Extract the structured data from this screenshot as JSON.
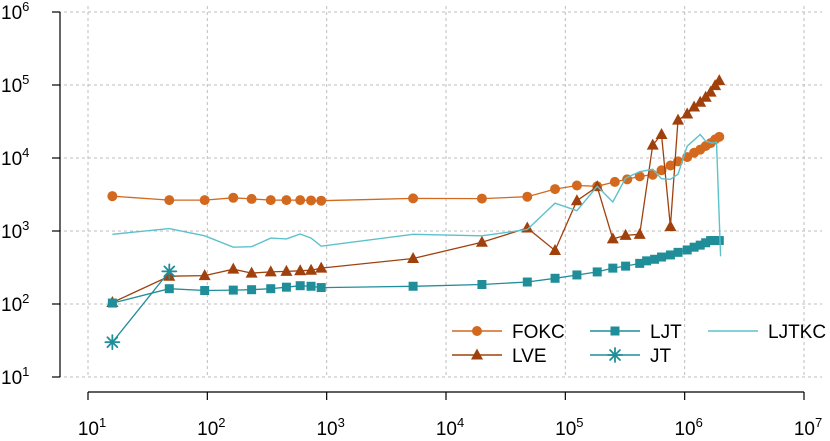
{
  "chart_data": {
    "type": "line",
    "title": "",
    "xlabel": "",
    "ylabel": "",
    "xscale": "log",
    "yscale": "log",
    "xlim": [
      10,
      10000000
    ],
    "ylim": [
      10,
      1000000
    ],
    "grid": true,
    "legend_position": "bottom-right",
    "x_ticks": [
      {
        "base": "10",
        "exp": "1",
        "value": 10
      },
      {
        "base": "10",
        "exp": "2",
        "value": 100
      },
      {
        "base": "10",
        "exp": "3",
        "value": 1000
      },
      {
        "base": "10",
        "exp": "4",
        "value": 10000
      },
      {
        "base": "10",
        "exp": "5",
        "value": 100000
      },
      {
        "base": "10",
        "exp": "6",
        "value": 1000000
      },
      {
        "base": "10",
        "exp": "7",
        "value": 10000000
      }
    ],
    "y_ticks": [
      {
        "base": "10",
        "exp": "1",
        "value": 10
      },
      {
        "base": "10",
        "exp": "2",
        "value": 100
      },
      {
        "base": "10",
        "exp": "3",
        "value": 1000
      },
      {
        "base": "10",
        "exp": "4",
        "value": 10000
      },
      {
        "base": "10",
        "exp": "5",
        "value": 100000
      },
      {
        "base": "10",
        "exp": "6",
        "value": 1000000
      }
    ],
    "series": [
      {
        "name": "FOKC",
        "color": "#d2691e",
        "marker": "circle",
        "line": true,
        "points": [
          [
            16,
            3000
          ],
          [
            48,
            2650
          ],
          [
            95,
            2650
          ],
          [
            165,
            2850
          ],
          [
            235,
            2750
          ],
          [
            340,
            2650
          ],
          [
            460,
            2650
          ],
          [
            600,
            2650
          ],
          [
            740,
            2620
          ],
          [
            900,
            2600
          ],
          [
            5300,
            2800
          ],
          [
            20000,
            2780
          ],
          [
            48000,
            2950
          ],
          [
            82000,
            3750
          ],
          [
            125000,
            4200
          ],
          [
            185000,
            4100
          ],
          [
            260000,
            4700
          ],
          [
            330000,
            5100
          ],
          [
            420000,
            5600
          ],
          [
            540000,
            5900
          ],
          [
            640000,
            6800
          ],
          [
            760000,
            7900
          ],
          [
            880000,
            9000
          ],
          [
            1050000,
            10300
          ],
          [
            1200000,
            11800
          ],
          [
            1350000,
            13000
          ],
          [
            1500000,
            14600
          ],
          [
            1650000,
            16000
          ],
          [
            1800000,
            18000
          ],
          [
            1950000,
            19500
          ]
        ]
      },
      {
        "name": "LVE",
        "color": "#a0410d",
        "marker": "triangle",
        "line": true,
        "points": [
          [
            16,
            105
          ],
          [
            48,
            240
          ],
          [
            95,
            245
          ],
          [
            165,
            300
          ],
          [
            235,
            265
          ],
          [
            340,
            275
          ],
          [
            460,
            280
          ],
          [
            600,
            285
          ],
          [
            740,
            290
          ],
          [
            900,
            310
          ],
          [
            5300,
            420
          ],
          [
            20000,
            700
          ],
          [
            48000,
            1100
          ],
          [
            82000,
            540
          ],
          [
            125000,
            2600
          ],
          [
            185000,
            4050
          ],
          [
            250000,
            780
          ],
          [
            320000,
            870
          ],
          [
            420000,
            900
          ],
          [
            540000,
            15000
          ],
          [
            640000,
            21000
          ],
          [
            760000,
            1150
          ],
          [
            880000,
            33000
          ],
          [
            1050000,
            40000
          ],
          [
            1200000,
            50000
          ],
          [
            1350000,
            58000
          ],
          [
            1500000,
            68000
          ],
          [
            1650000,
            80000
          ],
          [
            1800000,
            98000
          ],
          [
            1950000,
            115000
          ]
        ]
      },
      {
        "name": "LJT",
        "color": "#1f8e99",
        "marker": "square",
        "line": true,
        "points": [
          [
            16,
            103
          ],
          [
            48,
            162
          ],
          [
            95,
            153
          ],
          [
            165,
            155
          ],
          [
            235,
            157
          ],
          [
            340,
            162
          ],
          [
            460,
            170
          ],
          [
            600,
            178
          ],
          [
            740,
            175
          ],
          [
            900,
            168
          ],
          [
            5300,
            175
          ],
          [
            20000,
            185
          ],
          [
            48000,
            200
          ],
          [
            82000,
            225
          ],
          [
            125000,
            250
          ],
          [
            185000,
            275
          ],
          [
            250000,
            310
          ],
          [
            320000,
            330
          ],
          [
            420000,
            360
          ],
          [
            480000,
            390
          ],
          [
            560000,
            410
          ],
          [
            640000,
            440
          ],
          [
            760000,
            470
          ],
          [
            880000,
            510
          ],
          [
            1050000,
            550
          ],
          [
            1200000,
            600
          ],
          [
            1350000,
            640
          ],
          [
            1500000,
            690
          ],
          [
            1650000,
            740
          ],
          [
            1800000,
            740
          ],
          [
            1950000,
            740
          ]
        ]
      },
      {
        "name": "JT",
        "color": "#1f8e99",
        "marker": "asterisk",
        "line": true,
        "points": [
          [
            16,
            30
          ],
          [
            48,
            280
          ]
        ]
      },
      {
        "name": "LJTKC",
        "color": "#5bc2cc",
        "marker": "none",
        "line": true,
        "points": [
          [
            16,
            900
          ],
          [
            48,
            1080
          ],
          [
            95,
            860
          ],
          [
            165,
            600
          ],
          [
            235,
            610
          ],
          [
            340,
            800
          ],
          [
            460,
            780
          ],
          [
            600,
            910
          ],
          [
            740,
            800
          ],
          [
            900,
            620
          ],
          [
            5300,
            900
          ],
          [
            20000,
            860
          ],
          [
            48000,
            1050
          ],
          [
            82000,
            2400
          ],
          [
            125000,
            1900
          ],
          [
            185000,
            4100
          ],
          [
            250000,
            2500
          ],
          [
            320000,
            5300
          ],
          [
            420000,
            6500
          ],
          [
            540000,
            7000
          ],
          [
            640000,
            5200
          ],
          [
            760000,
            5100
          ],
          [
            880000,
            6000
          ],
          [
            1050000,
            14500
          ],
          [
            1350000,
            21000
          ],
          [
            1500000,
            17000
          ],
          [
            1700000,
            16000
          ],
          [
            1850000,
            16500
          ],
          [
            2000000,
            450
          ]
        ]
      }
    ],
    "legend": [
      {
        "name": "FOKC",
        "color": "#d2691e",
        "marker": "circle",
        "col": 0,
        "row": 0
      },
      {
        "name": "LVE",
        "color": "#a0410d",
        "marker": "triangle",
        "col": 0,
        "row": 1
      },
      {
        "name": "LJT",
        "color": "#1f8e99",
        "marker": "square",
        "col": 1,
        "row": 0
      },
      {
        "name": "JT",
        "color": "#1f8e99",
        "marker": "asterisk",
        "col": 1,
        "row": 1
      },
      {
        "name": "LJTKC",
        "color": "#5bc2cc",
        "marker": "none",
        "col": 2,
        "row": 0
      }
    ]
  }
}
